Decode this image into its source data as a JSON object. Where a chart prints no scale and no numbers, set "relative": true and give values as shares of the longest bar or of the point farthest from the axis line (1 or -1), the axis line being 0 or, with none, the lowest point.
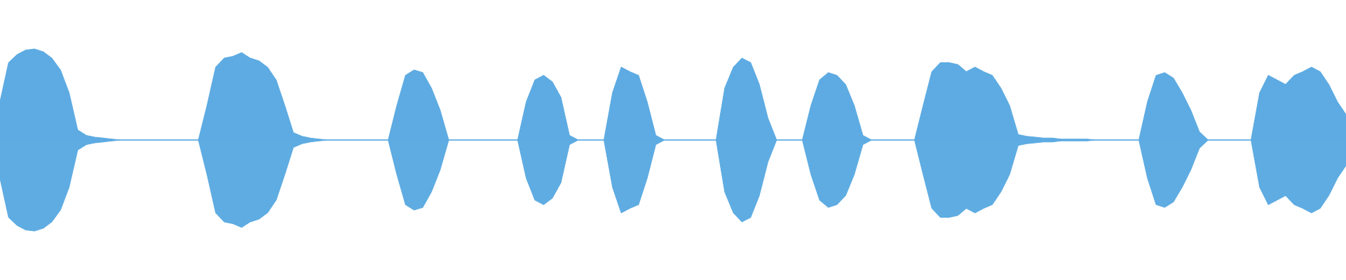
{
  "chart_data": {
    "type": "area",
    "relative": true,
    "ref_lines": [
      {
        "axis": "y",
        "value": 0,
        "color": "#5dabe2"
      }
    ],
    "categories": [
      null,
      null,
      null,
      null,
      null,
      null,
      null,
      null,
      null,
      null,
      null,
      null,
      null,
      null,
      null,
      null,
      null,
      null,
      null,
      null,
      null,
      null,
      null,
      null,
      null,
      null,
      null,
      null,
      null,
      null,
      null,
      null,
      null,
      null,
      null,
      null,
      null,
      null,
      null,
      null,
      null,
      null,
      null,
      null,
      null,
      null,
      null,
      null,
      null,
      null,
      null,
      null,
      null,
      null,
      null,
      null,
      null,
      null,
      null,
      null,
      null,
      null,
      null,
      null,
      null,
      null,
      null,
      null,
      null,
      null,
      null,
      null,
      null,
      null,
      null,
      null,
      null,
      null,
      null,
      null,
      null,
      null,
      null,
      null,
      null,
      null,
      null,
      null,
      null,
      null,
      null,
      null,
      null,
      null,
      null,
      null,
      null,
      null,
      null,
      null,
      null,
      null,
      null,
      null,
      null,
      null,
      null,
      null,
      null,
      null,
      null,
      null,
      null,
      null,
      null,
      null,
      null,
      null,
      null,
      null,
      null,
      null,
      null,
      null,
      null,
      null,
      null,
      null,
      null,
      null,
      null,
      null,
      null,
      null,
      null,
      null,
      null,
      null,
      null,
      null,
      null,
      null,
      null,
      null,
      null,
      null,
      null,
      null,
      null,
      null,
      null,
      null,
      null,
      null,
      null,
      null,
      null
    ],
    "series": [
      {
        "color": "#5dabe2",
        "values": [
          0.42,
          0.85,
          0.94,
          0.99,
          1.0,
          0.97,
          0.9,
          0.77,
          0.52,
          0.11,
          0.05,
          0.03,
          0.02,
          0.01,
          0,
          0,
          0,
          0,
          0,
          0,
          0,
          0,
          0,
          0,
          0.38,
          0.8,
          0.9,
          0.92,
          0.96,
          0.9,
          0.87,
          0.8,
          0.66,
          0.38,
          0.08,
          0.04,
          0.02,
          0.01,
          0,
          0,
          0,
          0,
          0,
          0,
          0,
          0,
          0.38,
          0.71,
          0.77,
          0.74,
          0.57,
          0.33,
          0,
          0,
          0,
          0,
          0,
          0,
          0,
          0,
          0,
          0.42,
          0.66,
          0.71,
          0.64,
          0.47,
          0.05,
          0,
          0,
          0,
          0,
          0.52,
          0.8,
          0.75,
          0.71,
          0.42,
          0.05,
          0,
          0,
          0,
          0,
          0,
          0,
          0,
          0.57,
          0.8,
          0.9,
          0.85,
          0.61,
          0.24,
          0,
          0,
          0,
          0,
          0.38,
          0.66,
          0.74,
          0.71,
          0.61,
          0.38,
          0.05,
          0,
          0,
          0,
          0,
          0,
          0,
          0.38,
          0.75,
          0.85,
          0.85,
          0.83,
          0.75,
          0.8,
          0.75,
          0.71,
          0.57,
          0.38,
          0.06,
          0.04,
          0.03,
          0.02,
          0.02,
          0.01,
          0.01,
          0.01,
          0.01,
          0,
          0,
          0,
          0,
          0,
          0,
          0.42,
          0.71,
          0.74,
          0.68,
          0.52,
          0.33,
          0.09,
          0,
          0,
          0,
          0,
          0,
          0,
          0.52,
          0.71,
          0.66,
          0.61,
          0.71,
          0.75,
          0.8,
          0.75,
          0.61,
          0.42,
          0.28
        ]
      },
      {
        "color": "#5eace2",
        "values": [
          -0.42,
          -0.85,
          -0.94,
          -0.99,
          -1.0,
          -0.97,
          -0.9,
          -0.77,
          -0.52,
          -0.11,
          -0.05,
          -0.03,
          -0.02,
          -0.01,
          0,
          0,
          0,
          0,
          0,
          0,
          0,
          0,
          0,
          0,
          -0.38,
          -0.8,
          -0.9,
          -0.92,
          -0.96,
          -0.9,
          -0.87,
          -0.8,
          -0.66,
          -0.38,
          -0.08,
          -0.04,
          -0.02,
          -0.01,
          0,
          0,
          0,
          0,
          0,
          0,
          0,
          0,
          -0.38,
          -0.71,
          -0.77,
          -0.74,
          -0.57,
          -0.33,
          0,
          0,
          0,
          0,
          0,
          0,
          0,
          0,
          0,
          -0.42,
          -0.66,
          -0.71,
          -0.64,
          -0.47,
          -0.05,
          0,
          0,
          0,
          0,
          -0.52,
          -0.8,
          -0.75,
          -0.71,
          -0.42,
          -0.05,
          0,
          0,
          0,
          0,
          0,
          0,
          0,
          -0.57,
          -0.8,
          -0.9,
          -0.85,
          -0.61,
          -0.24,
          0,
          0,
          0,
          0,
          -0.38,
          -0.66,
          -0.74,
          -0.71,
          -0.61,
          -0.38,
          -0.05,
          0,
          0,
          0,
          0,
          0,
          0,
          -0.38,
          -0.75,
          -0.85,
          -0.85,
          -0.83,
          -0.75,
          -0.8,
          -0.75,
          -0.71,
          -0.57,
          -0.38,
          -0.06,
          -0.04,
          -0.03,
          -0.02,
          -0.02,
          -0.01,
          -0.01,
          -0.01,
          -0.01,
          0,
          0,
          0,
          0,
          0,
          0,
          -0.42,
          -0.71,
          -0.74,
          -0.68,
          -0.52,
          -0.33,
          -0.09,
          0,
          0,
          0,
          0,
          0,
          0,
          -0.52,
          -0.71,
          -0.66,
          -0.61,
          -0.71,
          -0.75,
          -0.8,
          -0.75,
          -0.61,
          -0.42,
          -0.28
        ]
      }
    ]
  }
}
